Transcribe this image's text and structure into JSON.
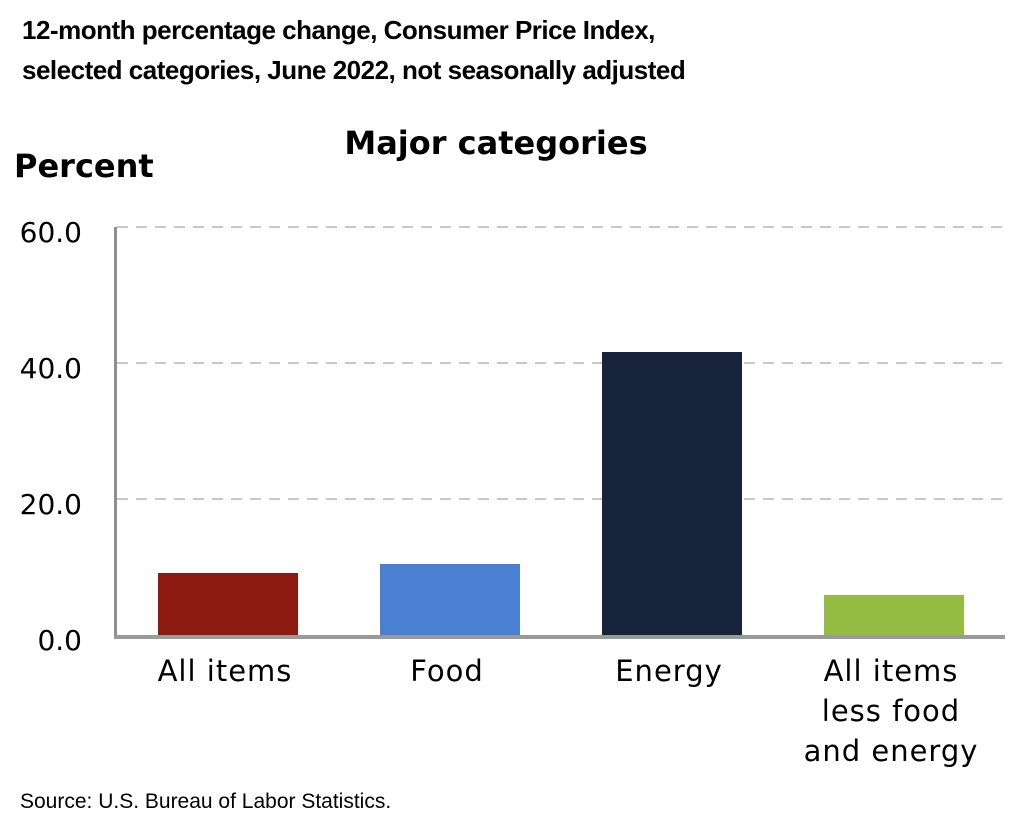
{
  "header": {
    "title_line1": "12-month percentage change, Consumer Price Index,",
    "title_line2": "selected categories, June 2022, not seasonally adjusted"
  },
  "chart_data": {
    "type": "bar",
    "title": "Major categories",
    "ylabel": "Percent",
    "xlabel": "",
    "categories": [
      "All items",
      "Food",
      "Energy",
      "All items less food and energy"
    ],
    "categories_display": [
      [
        "All items"
      ],
      [
        "Food"
      ],
      [
        "Energy"
      ],
      [
        "All items",
        "less food",
        "and energy"
      ]
    ],
    "values": [
      9.1,
      10.4,
      41.6,
      5.9
    ],
    "unit": "percent",
    "bar_colors": [
      "#8c1a11",
      "#4a80d1",
      "#17243b",
      "#94bc43"
    ],
    "ylim": [
      0,
      60
    ],
    "yticks": [
      0,
      20,
      40,
      60
    ],
    "ytick_labels": [
      "0.0",
      "20.0",
      "40.0",
      "60.0"
    ],
    "grid": "horizontal-dashed",
    "legend": "none"
  },
  "footer": {
    "source": "Source: U.S. Bureau of Labor Statistics."
  },
  "colors": {
    "axis": "#8f8f8f",
    "baseline": "#9a9a9a",
    "gridline": "#c9c9c9",
    "text": "#000000",
    "background": "#ffffff"
  }
}
